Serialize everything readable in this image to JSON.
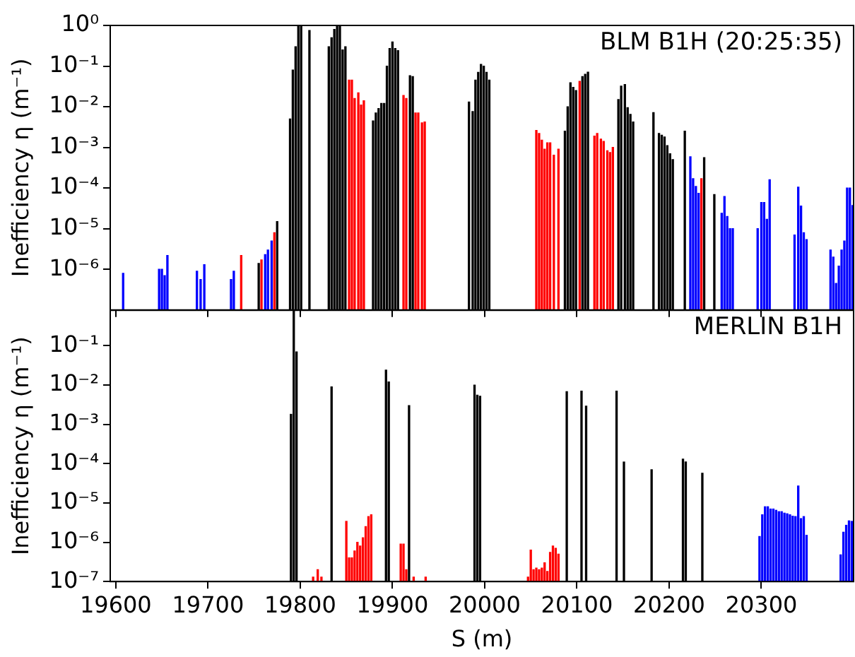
{
  "chart_data": [
    {
      "type": "bar",
      "annotations": [
        "BLM B1H (20:25:35)"
      ],
      "ylabel": "Inefficiency η (m⁻¹)",
      "log": "y",
      "tick_labels": "y",
      "xlim": [
        19594,
        20400
      ],
      "xticks": [
        19600,
        19700,
        19800,
        19900,
        20000,
        20100,
        20200,
        20300
      ],
      "ylim": [
        1e-07,
        1
      ],
      "yticks": [
        {
          "value": 1e-06,
          "label": "10⁻⁶"
        },
        {
          "value": 1e-05,
          "label": "10⁻⁵"
        },
        {
          "value": 0.0001,
          "label": "10⁻⁴"
        },
        {
          "value": 0.001,
          "label": "10⁻³"
        },
        {
          "value": 0.01,
          "label": "10⁻²"
        },
        {
          "value": 0.1,
          "label": "10⁻¹"
        },
        {
          "value": 1,
          "label": "10⁰"
        }
      ],
      "series": [
        {
          "color": "#000000",
          "x": [
            19755,
            19775,
            19789,
            19792,
            19795,
            19798,
            19801,
            19810,
            19831,
            19834,
            19837,
            19840,
            19843,
            19846,
            19849,
            19879,
            19882,
            19885,
            19888,
            19891,
            19894,
            19897,
            19900,
            19903,
            19906,
            19919,
            19922,
            19983,
            19987,
            19990,
            19993,
            19996,
            19999,
            20002,
            20005,
            20087,
            20090,
            20093,
            20096,
            20099,
            20106,
            20109,
            20112,
            20145,
            20148,
            20152,
            20155,
            20158,
            20161,
            20183,
            20189,
            20192,
            20195,
            20198,
            20201,
            20204,
            20217,
            20238,
            20249
          ],
          "values": [
            1.4e-06,
            1.5e-05,
            0.005,
            0.08,
            0.3,
            1,
            1,
            0.75,
            0.3,
            0.5,
            0.8,
            1,
            1,
            0.25,
            0.3,
            0.0045,
            0.007,
            0.009,
            0.012,
            0.012,
            0.1,
            0.27,
            0.39,
            0.27,
            0.24,
            0.058,
            0.055,
            0.013,
            0.0076,
            0.045,
            0.07,
            0.11,
            0.1,
            0.07,
            0.045,
            0.0025,
            0.01,
            0.039,
            0.03,
            0.025,
            0.055,
            0.063,
            0.071,
            0.015,
            0.032,
            0.035,
            0.0095,
            0.0065,
            0.0042,
            0.0072,
            0.0022,
            0.002,
            0.0018,
            0.0011,
            0.0007,
            0.0005,
            0.0025,
            0.00056,
            6.9e-05
          ]
        },
        {
          "color": "#ff0000",
          "x": [
            19736,
            19758,
            19772,
            19853,
            19856,
            19859,
            19863,
            19866,
            19869,
            19912,
            19915,
            19925,
            19928,
            19932,
            19935,
            20056,
            20059,
            20062,
            20065,
            20068,
            20071,
            20075,
            20080,
            20103,
            20119,
            20122,
            20126,
            20129,
            20133,
            20136,
            20139,
            20235
          ],
          "values": [
            2.2e-06,
            1.7e-06,
            8e-06,
            0.045,
            0.045,
            0.016,
            0.022,
            0.011,
            0.014,
            0.019,
            0.016,
            0.007,
            0.007,
            0.004,
            0.0042,
            0.0026,
            0.0022,
            0.0015,
            0.0009,
            0.0013,
            0.0013,
            0.00064,
            0.0009,
            0.042,
            0.0019,
            0.0022,
            0.0016,
            0.0014,
            0.00083,
            0.00075,
            0.001,
            0.00017
          ]
        },
        {
          "color": "#0000ff",
          "x": [
            19608,
            19647,
            19650,
            19653,
            19656,
            19688,
            19692,
            19696,
            19725,
            19728,
            19762,
            19765,
            19769,
            20223,
            20226,
            20229,
            20232,
            20257,
            20260,
            20263,
            20266,
            20269,
            20296,
            20300,
            20303,
            20306,
            20309,
            20336,
            20340,
            20343,
            20346,
            20349,
            20375,
            20378,
            20381,
            20384,
            20387,
            20390,
            20393,
            20396,
            20399
          ],
          "values": [
            8e-07,
            1e-06,
            1e-06,
            7e-07,
            2.2e-06,
            9e-07,
            5.6e-07,
            1.3e-06,
            5.6e-07,
            9e-07,
            2.3e-06,
            3e-06,
            5e-06,
            0.00059,
            0.00017,
            0.00011,
            7.4e-05,
            2.4e-05,
            6.2e-05,
            2e-05,
            1e-05,
            1e-05,
            1e-05,
            4.4e-05,
            4.4e-05,
            1.7e-05,
            0.00016,
            7e-06,
            0.000105,
            3.6e-05,
            8e-06,
            5.4e-06,
            3e-06,
            2e-06,
            4.5e-07,
            1.2e-06,
            3e-06,
            5e-06,
            0.0001,
            0.0001,
            3.7e-05
          ]
        }
      ]
    },
    {
      "type": "bar",
      "annotations": [
        "MERLIN B1H"
      ],
      "ylabel": "Inefficiency η (m⁻¹)",
      "xlabel": "S (m)",
      "log": "y",
      "xlim": [
        19594,
        20400
      ],
      "xticks": [
        19600,
        19700,
        19800,
        19900,
        20000,
        20100,
        20200,
        20300
      ],
      "ylim": [
        1e-07,
        0.8
      ],
      "yticks": [
        {
          "value": 1e-07,
          "label": "10⁻⁷"
        },
        {
          "value": 1e-06,
          "label": "10⁻⁶"
        },
        {
          "value": 1e-05,
          "label": "10⁻⁵"
        },
        {
          "value": 0.0001,
          "label": "10⁻⁴"
        },
        {
          "value": 0.001,
          "label": "10⁻³"
        },
        {
          "value": 0.01,
          "label": "10⁻²"
        },
        {
          "value": 0.1,
          "label": "10⁻¹"
        }
      ],
      "series": [
        {
          "color": "#000000",
          "x": [
            19790,
            19793,
            19796,
            19834,
            19893,
            19896,
            19918,
            19989,
            19992,
            19995,
            20089,
            20105,
            20110,
            20143,
            20151,
            20181,
            20215,
            20218,
            20236
          ],
          "values": [
            0.0018,
            0.8,
            0.07,
            0.009,
            0.024,
            0.012,
            0.003,
            0.01,
            0.0055,
            0.0052,
            0.0068,
            0.007,
            0.0029,
            0.007,
            0.00011,
            7e-05,
            0.00013,
            0.00011,
            5.7e-05
          ]
        },
        {
          "color": "#ff0000",
          "x": [
            19814,
            19819,
            19823,
            19850,
            19853,
            19856,
            19859,
            19862,
            19865,
            19868,
            19871,
            19874,
            19877,
            19909,
            19912,
            19915,
            19923,
            19936,
            20047,
            20050,
            20053,
            20056,
            20059,
            20062,
            20065,
            20068,
            20071,
            20074,
            20077,
            20080
          ],
          "values": [
            1.3e-07,
            2e-07,
            1.3e-07,
            3.4e-06,
            4e-07,
            4e-07,
            6e-07,
            1e-06,
            8e-07,
            1.3e-06,
            2.5e-06,
            4.5e-06,
            5e-06,
            9e-07,
            9e-07,
            2e-07,
            1.3e-07,
            1.3e-07,
            1.3e-07,
            6.3e-07,
            2e-07,
            2.2e-07,
            2e-07,
            2.2e-07,
            3e-07,
            1.8e-07,
            5.5e-07,
            8e-07,
            7e-07,
            5e-07
          ]
        },
        {
          "color": "#0000ff",
          "x": [
            20298,
            20301,
            20304,
            20307,
            20310,
            20313,
            20316,
            20319,
            20322,
            20325,
            20328,
            20331,
            20334,
            20337,
            20340,
            20343,
            20346,
            20349,
            20386,
            20389,
            20392,
            20395,
            20398
          ],
          "values": [
            1.4e-06,
            5e-06,
            8e-06,
            8e-06,
            7e-06,
            7e-06,
            6.5e-06,
            6e-06,
            6e-06,
            5.5e-06,
            5.3e-06,
            5e-06,
            4.6e-06,
            4.5e-06,
            2.7e-05,
            4e-06,
            4.5e-06,
            1.5e-06,
            4.8e-07,
            1.8e-06,
            2.7e-06,
            3.5e-06,
            3.4e-06
          ]
        }
      ]
    }
  ]
}
